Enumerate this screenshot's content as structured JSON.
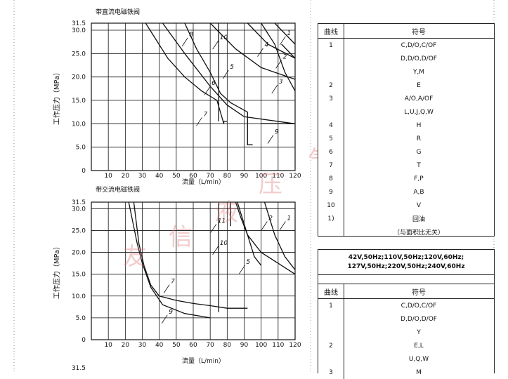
{
  "colors": {
    "line": "#111111",
    "watermark": "#e07070"
  },
  "watermark": [
    "友",
    "信",
    "液",
    "压",
    "气",
    "动"
  ],
  "chart_data": [
    {
      "type": "line",
      "title": "带直流电磁铁阀",
      "xlabel": "流量（L/min）",
      "ylabel": "工作压力（MPa）",
      "xlim": [
        0,
        120
      ],
      "ylim": [
        0,
        31.5
      ],
      "x_ticks": [
        "10",
        "20",
        "30",
        "40",
        "50",
        "60",
        "70",
        "80",
        "90",
        "100",
        "110",
        "120"
      ],
      "y_ticks": [
        "0",
        "5.0",
        "10.0",
        "15.0",
        "20.0",
        "25.0",
        "30.0",
        "31.5"
      ],
      "grid": true,
      "series": [
        {
          "name": "1",
          "points": [
            [
              108,
              31.5
            ],
            [
              120,
              27
            ]
          ]
        },
        {
          "name": "2",
          "points": [
            [
              112,
              27
            ],
            [
              120,
              24
            ]
          ]
        },
        {
          "name": "3",
          "points": [
            [
              100,
              31.5
            ],
            [
              108,
              27
            ],
            [
              114,
              21
            ],
            [
              120,
              17
            ]
          ]
        },
        {
          "name": "4",
          "points": [
            [
              92,
              31.5
            ],
            [
              104,
              27
            ],
            [
              120,
              24
            ]
          ]
        },
        {
          "name": "5",
          "points": [
            [
              70,
              31.5
            ],
            [
              85,
              26
            ],
            [
              100,
              22
            ],
            [
              120,
              19.5
            ]
          ]
        },
        {
          "name": "6",
          "points": [
            [
              42,
              31.5
            ],
            [
              55,
              25
            ],
            [
              70,
              18
            ],
            [
              80,
              14
            ],
            [
              90,
              11.5
            ],
            [
              120,
              10
            ]
          ]
        },
        {
          "name": "7",
          "points": [
            [
              32,
              31.5
            ],
            [
              45,
              24
            ],
            [
              55,
              20
            ],
            [
              65,
              17
            ],
            [
              74,
              15
            ],
            [
              78,
              10
            ],
            [
              78,
              10.5
            ],
            [
              80,
              10.5
            ]
          ]
        },
        {
          "name": "8",
          "points": [
            [
              55,
              31.5
            ],
            [
              62,
              26
            ],
            [
              70,
              21
            ],
            [
              76,
              16.5
            ],
            [
              82,
              14.5
            ],
            [
              92,
              12.5
            ],
            [
              92,
              5.5
            ],
            [
              95,
              5.5
            ]
          ]
        },
        {
          "name": "9",
          "points": [
            [
              100,
              10
            ],
            [
              120,
              10
            ]
          ]
        },
        {
          "name": "10",
          "points": [
            [
              75,
              31.5
            ],
            [
              75,
              10.5
            ]
          ]
        }
      ]
    },
    {
      "type": "line",
      "title": "带交流电磁铁阀",
      "xlabel": "流量（L/min）",
      "ylabel": "工作压力（MPa）",
      "xlim": [
        0,
        120
      ],
      "ylim": [
        0,
        31.5
      ],
      "x_ticks": [
        "10",
        "20",
        "30",
        "40",
        "50",
        "60",
        "70",
        "80",
        "90",
        "100",
        "110",
        "120"
      ],
      "y_ticks": [
        "0",
        "5.0",
        "10.0",
        "15.0",
        "20.0",
        "25.0",
        "30.0",
        "31.5"
      ],
      "grid": true,
      "series": [
        {
          "name": "1",
          "points": [
            [
              102,
              31.5
            ],
            [
              108,
              24
            ],
            [
              114,
              19
            ],
            [
              120,
              16
            ]
          ]
        },
        {
          "name": "2",
          "points": [
            [
              86,
              31.5
            ],
            [
              92,
              24
            ],
            [
              100,
              20
            ],
            [
              110,
              17.5
            ],
            [
              120,
              15
            ]
          ]
        },
        {
          "name": "5",
          "points": [
            [
              85,
              31.5
            ],
            [
              88,
              28
            ],
            [
              92,
              24
            ],
            [
              96,
              19
            ],
            [
              100,
              17
            ]
          ]
        },
        {
          "name": "7",
          "points": [
            [
              25,
              31.5
            ],
            [
              28,
              22
            ],
            [
              31,
              17
            ],
            [
              35,
              12.5
            ],
            [
              40,
              10
            ],
            [
              50,
              9
            ],
            [
              60,
              8.3
            ],
            [
              70,
              7.8
            ],
            [
              80,
              7.2
            ],
            [
              92,
              7.2
            ]
          ]
        },
        {
          "name": "9",
          "points": [
            [
              22,
              31.5
            ],
            [
              27,
              22
            ],
            [
              30,
              17.5
            ],
            [
              35,
              12
            ],
            [
              42,
              8
            ],
            [
              55,
              6
            ],
            [
              70,
              5
            ]
          ]
        },
        {
          "name": "10",
          "points": [
            [
              75,
              31.5
            ],
            [
              75,
              6.3
            ]
          ]
        },
        {
          "name": "11",
          "points": [
            [
              82,
              31.5
            ],
            [
              82,
              26
            ]
          ]
        }
      ]
    }
  ],
  "table1": {
    "headers": [
      "曲线",
      "符号"
    ],
    "rows": [
      [
        "1",
        "C,D/O,C/OF"
      ],
      [
        "",
        "D,D/O,D/OF"
      ],
      [
        "",
        "Y,M"
      ],
      [
        "2",
        "E"
      ],
      [
        "3",
        "A/O,A/OF"
      ],
      [
        "",
        "L,U,J,Q,W"
      ],
      [
        "4",
        "H"
      ],
      [
        "5",
        "R"
      ],
      [
        "6",
        "G"
      ],
      [
        "7",
        "T"
      ],
      [
        "8",
        "F,P"
      ],
      [
        "9",
        "A,B"
      ],
      [
        "10",
        "V"
      ],
      [
        "1)",
        "回油"
      ],
      [
        "",
        "（与面积比无关）"
      ]
    ]
  },
  "table2": {
    "note_line1": "42V,50Hz;110V,50Hz;120V,60Hz;",
    "note_line2": "127V,50Hz;220V,50Hz;240V,60Hz",
    "headers": [
      "曲线",
      "符号"
    ],
    "rows": [
      [
        "1",
        "C,D/O,C/OF"
      ],
      [
        "",
        "D,D/O,D/OF"
      ],
      [
        "",
        "Y"
      ],
      [
        "2",
        "E,L"
      ],
      [
        "",
        "U,Q,W"
      ],
      [
        "3",
        "M"
      ]
    ]
  }
}
